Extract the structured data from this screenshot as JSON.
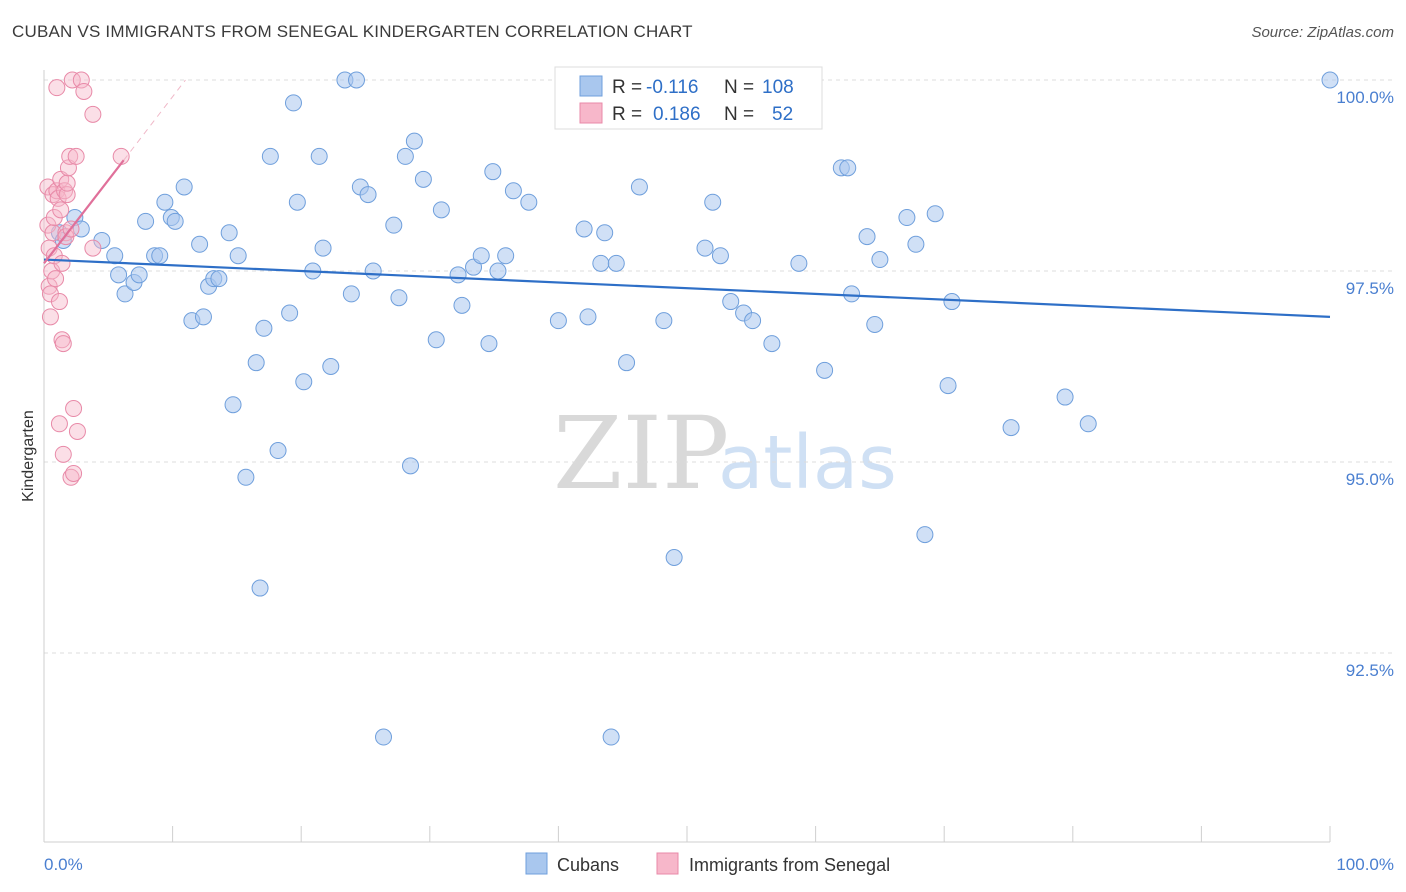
{
  "header": {
    "title": "CUBAN VS IMMIGRANTS FROM SENEGAL KINDERGARTEN CORRELATION CHART",
    "source": "Source: ZipAtlas.com"
  },
  "watermark": {
    "part1": "ZIP",
    "part2": "atlas"
  },
  "legend": {
    "rows": [
      {
        "r_label": "R =",
        "r_value": "-0.116",
        "n_label": "N =",
        "n_value": "108",
        "color": "#a9c7ee"
      },
      {
        "r_label": "R =",
        "r_value": "0.186",
        "n_label": "N =",
        "n_value": "52",
        "color": "#f7b7ca"
      }
    ]
  },
  "bottom_legend": [
    {
      "label": "Cubans",
      "color": "#a9c7ee"
    },
    {
      "label": "Immigrants from Senegal",
      "color": "#f7b7ca"
    }
  ],
  "chart_data": {
    "type": "scatter",
    "ylabel": "Kindergarten",
    "xlim": [
      0,
      100
    ],
    "ylim": [
      90.0,
      100.3
    ],
    "x_tick_labels": [
      "0.0%",
      "100.0%"
    ],
    "y_ticks": [
      {
        "value": 100.0,
        "label": "100.0%"
      },
      {
        "value": 97.5,
        "label": "97.5%"
      },
      {
        "value": 95.0,
        "label": "95.0%"
      },
      {
        "value": 92.5,
        "label": "92.5%"
      }
    ],
    "grid": "dashed horizontal",
    "colors": {
      "blue_fill": "#a9c7ee",
      "blue_stroke": "#6f9fdc",
      "blue_line": "#2e6fc7",
      "pink_fill": "#f7b7ca",
      "pink_stroke": "#e88aa8",
      "pink_line": "#e0709a"
    },
    "series": [
      {
        "name": "Cubans",
        "trend": {
          "x": [
            0,
            100
          ],
          "y": [
            97.65,
            96.9
          ]
        },
        "points": [
          [
            1.2,
            98.0
          ],
          [
            1.5,
            97.9
          ],
          [
            2.4,
            98.2
          ],
          [
            2.9,
            98.05
          ],
          [
            4.5,
            97.9
          ],
          [
            5.5,
            97.7
          ],
          [
            5.8,
            97.45
          ],
          [
            6.3,
            97.2
          ],
          [
            7.0,
            97.35
          ],
          [
            7.4,
            97.45
          ],
          [
            7.9,
            98.15
          ],
          [
            8.6,
            97.7
          ],
          [
            9.0,
            97.7
          ],
          [
            9.4,
            98.4
          ],
          [
            9.9,
            98.2
          ],
          [
            10.2,
            98.15
          ],
          [
            10.9,
            98.6
          ],
          [
            11.5,
            96.85
          ],
          [
            12.1,
            97.85
          ],
          [
            12.4,
            96.9
          ],
          [
            12.8,
            97.3
          ],
          [
            13.2,
            97.4
          ],
          [
            13.6,
            97.4
          ],
          [
            14.4,
            98.0
          ],
          [
            14.7,
            95.75
          ],
          [
            15.1,
            97.7
          ],
          [
            15.7,
            94.8
          ],
          [
            16.5,
            96.3
          ],
          [
            16.8,
            93.35
          ],
          [
            17.1,
            96.75
          ],
          [
            17.6,
            99.0
          ],
          [
            18.2,
            95.15
          ],
          [
            19.1,
            96.95
          ],
          [
            19.4,
            99.7
          ],
          [
            19.7,
            98.4
          ],
          [
            20.2,
            96.05
          ],
          [
            20.9,
            97.5
          ],
          [
            21.4,
            99.0
          ],
          [
            21.7,
            97.8
          ],
          [
            22.3,
            96.25
          ],
          [
            23.4,
            100.0
          ],
          [
            23.9,
            97.2
          ],
          [
            24.3,
            100.0
          ],
          [
            24.6,
            98.6
          ],
          [
            25.2,
            98.5
          ],
          [
            25.6,
            97.5
          ],
          [
            26.4,
            91.4
          ],
          [
            27.2,
            98.1
          ],
          [
            27.6,
            97.15
          ],
          [
            28.1,
            99.0
          ],
          [
            28.5,
            94.95
          ],
          [
            28.8,
            99.2
          ],
          [
            29.5,
            98.7
          ],
          [
            30.5,
            96.6
          ],
          [
            30.9,
            98.3
          ],
          [
            32.2,
            97.45
          ],
          [
            32.5,
            97.05
          ],
          [
            33.4,
            97.55
          ],
          [
            34.0,
            97.7
          ],
          [
            34.6,
            96.55
          ],
          [
            34.9,
            98.8
          ],
          [
            35.3,
            97.5
          ],
          [
            35.9,
            97.7
          ],
          [
            36.5,
            98.55
          ],
          [
            37.7,
            98.4
          ],
          [
            40.0,
            96.85
          ],
          [
            42.0,
            98.05
          ],
          [
            42.3,
            96.9
          ],
          [
            43.3,
            97.6
          ],
          [
            43.6,
            98.0
          ],
          [
            44.1,
            91.4
          ],
          [
            44.5,
            97.6
          ],
          [
            45.3,
            96.3
          ],
          [
            46.3,
            98.6
          ],
          [
            48.2,
            96.85
          ],
          [
            49.0,
            93.75
          ],
          [
            50.1,
            100.0
          ],
          [
            51.4,
            97.8
          ],
          [
            52.0,
            98.4
          ],
          [
            52.6,
            97.7
          ],
          [
            53.4,
            97.1
          ],
          [
            54.4,
            96.95
          ],
          [
            55.1,
            96.85
          ],
          [
            56.6,
            96.55
          ],
          [
            58.7,
            97.6
          ],
          [
            60.7,
            96.2
          ],
          [
            62.0,
            98.85
          ],
          [
            62.5,
            98.85
          ],
          [
            62.8,
            97.2
          ],
          [
            64.0,
            97.95
          ],
          [
            64.6,
            96.8
          ],
          [
            65.0,
            97.65
          ],
          [
            67.1,
            98.2
          ],
          [
            67.8,
            97.85
          ],
          [
            68.5,
            94.05
          ],
          [
            69.3,
            98.25
          ],
          [
            70.3,
            96.0
          ],
          [
            70.6,
            97.1
          ],
          [
            75.2,
            95.45
          ],
          [
            79.4,
            95.85
          ],
          [
            81.2,
            95.5
          ],
          [
            100.0,
            100.0
          ]
        ]
      },
      {
        "name": "Immigrants from Senegal",
        "trend": {
          "x": [
            0,
            6.2
          ],
          "y": [
            97.6,
            98.95
          ]
        },
        "trend_extension": {
          "x": [
            6.2,
            11.0
          ],
          "y": [
            98.95,
            100.0
          ]
        },
        "points": [
          [
            0.3,
            98.6
          ],
          [
            0.3,
            98.1
          ],
          [
            0.4,
            97.8
          ],
          [
            0.4,
            97.3
          ],
          [
            0.5,
            97.2
          ],
          [
            0.5,
            96.9
          ],
          [
            0.6,
            97.5
          ],
          [
            0.7,
            98.5
          ],
          [
            0.7,
            98.0
          ],
          [
            0.8,
            98.2
          ],
          [
            0.8,
            97.7
          ],
          [
            0.9,
            97.4
          ],
          [
            1.0,
            98.55
          ],
          [
            1.0,
            99.9
          ],
          [
            1.1,
            98.45
          ],
          [
            1.2,
            97.1
          ],
          [
            1.2,
            95.5
          ],
          [
            1.3,
            98.3
          ],
          [
            1.3,
            98.7
          ],
          [
            1.4,
            97.6
          ],
          [
            1.4,
            96.6
          ],
          [
            1.5,
            95.1
          ],
          [
            1.5,
            96.55
          ],
          [
            1.6,
            98.55
          ],
          [
            1.7,
            98.0
          ],
          [
            1.7,
            97.95
          ],
          [
            1.8,
            98.5
          ],
          [
            1.8,
            98.65
          ],
          [
            1.9,
            98.85
          ],
          [
            2.0,
            99.0
          ],
          [
            2.1,
            94.8
          ],
          [
            2.1,
            98.05
          ],
          [
            2.2,
            100.0
          ],
          [
            2.3,
            95.7
          ],
          [
            2.3,
            94.85
          ],
          [
            2.5,
            99.0
          ],
          [
            2.6,
            95.4
          ],
          [
            2.9,
            100.0
          ],
          [
            3.1,
            99.85
          ],
          [
            3.8,
            99.55
          ],
          [
            3.8,
            97.8
          ],
          [
            6.0,
            99.0
          ]
        ]
      }
    ]
  }
}
